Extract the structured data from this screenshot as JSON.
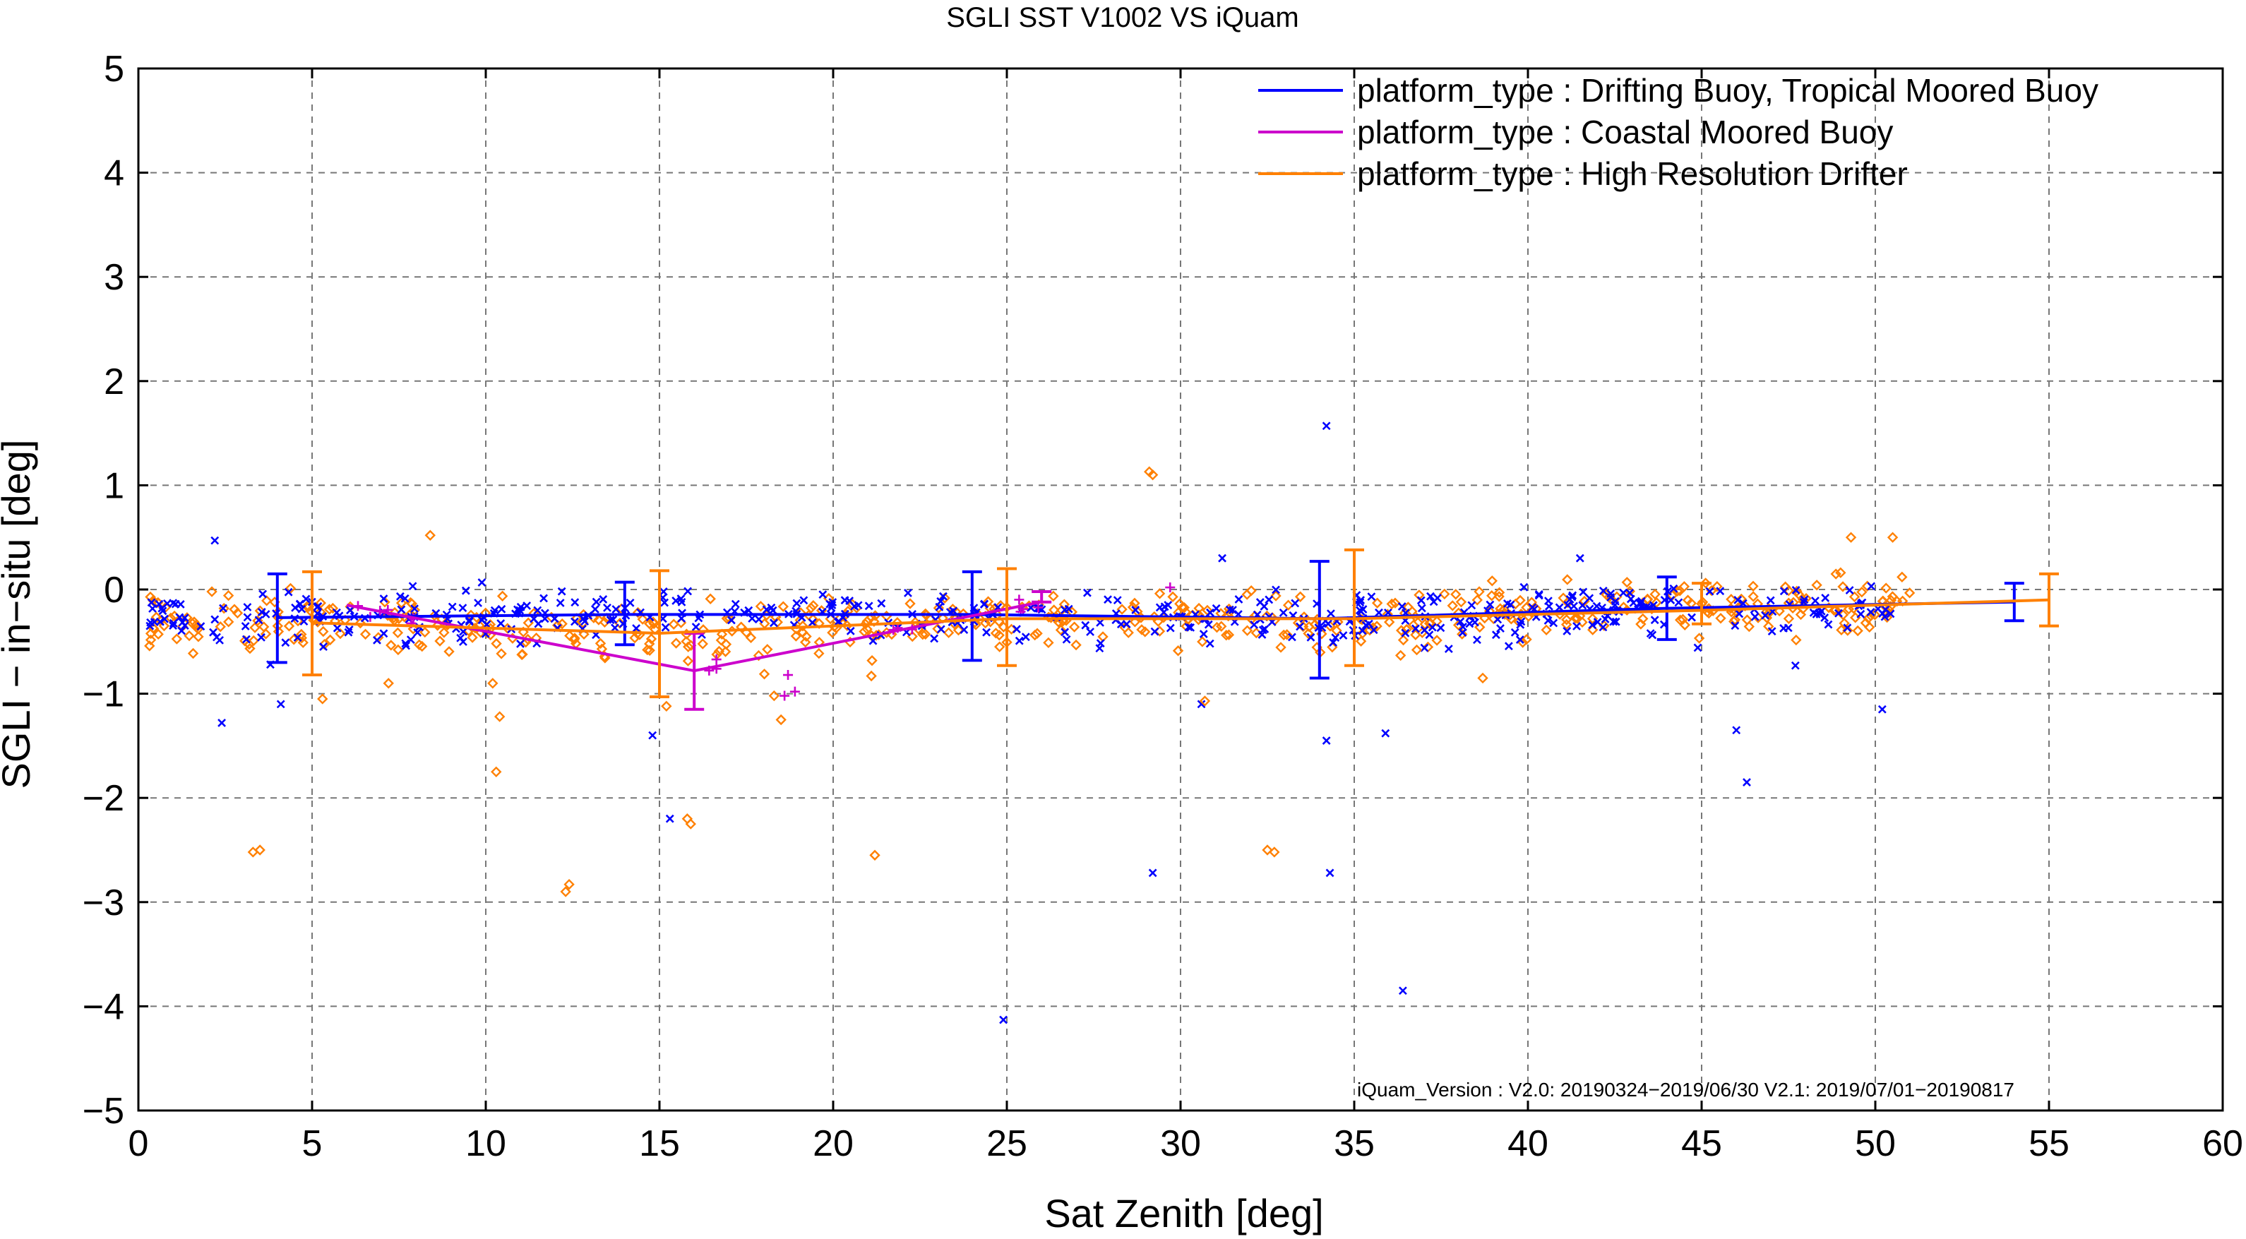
{
  "chart_data": {
    "type": "scatter",
    "title": "SGLI SST V1002 VS iQuam",
    "xlabel": "Sat Zenith [deg]",
    "ylabel": "SGLI − in−situ [deg]",
    "xlim": [
      0,
      60
    ],
    "ylim": [
      -5,
      5
    ],
    "xticks": [
      0,
      5,
      10,
      15,
      20,
      25,
      30,
      35,
      40,
      45,
      50,
      55,
      60
    ],
    "yticks": [
      -5,
      -4,
      -3,
      -2,
      -1,
      0,
      1,
      2,
      3,
      4,
      5
    ],
    "grid": true,
    "legend_position": "top-right",
    "annotation": "iQuam_Version :  V2.0: 20190324−2019/06/30 V2.1: 2019/07/01−20190817",
    "series": [
      {
        "name": "platform_type : Drifting Buoy, Tropical Moored Buoy",
        "color": "#0000ff",
        "marker": "x",
        "mean_x": [
          4,
          14,
          24,
          34,
          44,
          54
        ],
        "mean_y": [
          -0.27,
          -0.24,
          -0.24,
          -0.28,
          -0.18,
          -0.12
        ],
        "err_low": [
          -0.7,
          -0.53,
          -0.68,
          -0.85,
          -0.48,
          -0.3
        ],
        "err_high": [
          0.15,
          0.07,
          0.17,
          0.27,
          0.12,
          0.06
        ],
        "outliers": [
          [
            2.2,
            0.47
          ],
          [
            2.4,
            -1.28
          ],
          [
            3.8,
            -0.72
          ],
          [
            4.1,
            -1.1
          ],
          [
            14.8,
            -1.4
          ],
          [
            15.3,
            -2.2
          ],
          [
            24.9,
            -4.13
          ],
          [
            29.2,
            -2.72
          ],
          [
            30.6,
            -1.1
          ],
          [
            34.2,
            1.57
          ],
          [
            34.3,
            -2.72
          ],
          [
            36.4,
            -3.85
          ],
          [
            35.9,
            -1.38
          ],
          [
            34.2,
            -1.45
          ],
          [
            46.0,
            -1.35
          ],
          [
            46.3,
            -1.85
          ],
          [
            47.7,
            -0.73
          ],
          [
            50.2,
            -1.15
          ],
          [
            31.2,
            0.3
          ],
          [
            41.5,
            0.3
          ]
        ]
      },
      {
        "name": "platform_type : Coastal Moored Buoy",
        "color": "#cc00cc",
        "marker": "+",
        "mean_x": [
          6,
          16,
          26
        ],
        "mean_y": [
          -0.15,
          -0.78,
          -0.12
        ],
        "err_low": [
          -0.15,
          -1.15,
          -0.12
        ],
        "err_high": [
          -0.15,
          -0.42,
          -0.02
        ],
        "outliers": [
          [
            18.7,
            -0.82
          ],
          [
            18.9,
            -0.98
          ],
          [
            18.6,
            -1.02
          ],
          [
            29.7,
            0.02
          ]
        ]
      },
      {
        "name": "platform_type : High Resolution Drifter",
        "color": "#ff8000",
        "marker": "diamond",
        "mean_x": [
          5,
          15,
          25,
          35,
          45,
          55
        ],
        "mean_y": [
          -0.32,
          -0.42,
          -0.28,
          -0.28,
          -0.2,
          -0.1
        ],
        "err_low": [
          -0.82,
          -1.03,
          -0.73,
          -0.73,
          -0.33,
          -0.35
        ],
        "err_high": [
          0.17,
          0.18,
          0.2,
          0.38,
          0.06,
          0.15
        ],
        "outliers": [
          [
            3.3,
            -2.52
          ],
          [
            3.5,
            -2.5
          ],
          [
            12.3,
            -2.9
          ],
          [
            12.4,
            -2.83
          ],
          [
            15.8,
            -2.2
          ],
          [
            15.9,
            -2.25
          ],
          [
            21.2,
            -2.55
          ],
          [
            32.5,
            -2.5
          ],
          [
            32.7,
            -2.52
          ],
          [
            29.1,
            1.13
          ],
          [
            29.2,
            1.1
          ],
          [
            8.4,
            0.52
          ],
          [
            10.3,
            -1.75
          ],
          [
            10.4,
            -1.22
          ],
          [
            10.2,
            -0.9
          ],
          [
            30.7,
            -1.07
          ],
          [
            18.5,
            -1.25
          ],
          [
            18.3,
            -1.02
          ],
          [
            5.3,
            -1.05
          ],
          [
            7.2,
            -0.9
          ],
          [
            15.2,
            -1.12
          ],
          [
            36.8,
            -0.58
          ],
          [
            38.7,
            -0.85
          ],
          [
            49.3,
            0.5
          ],
          [
            50.5,
            0.5
          ],
          [
            21.1,
            -0.83
          ]
        ]
      }
    ]
  }
}
